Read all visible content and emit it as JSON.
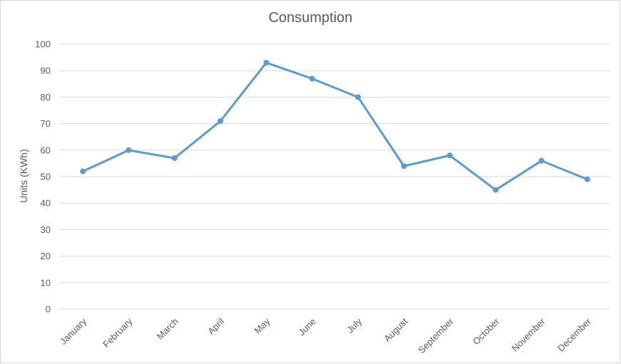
{
  "chart_data": {
    "type": "line",
    "title": "Consumption",
    "xlabel": "",
    "ylabel": "Units (KWh)",
    "categories": [
      "January",
      "February",
      "March",
      "April",
      "May",
      "June",
      "July",
      "August",
      "September",
      "October",
      "November",
      "December"
    ],
    "series": [
      {
        "values": [
          52,
          60,
          57,
          71,
          93,
          87,
          80,
          54,
          58,
          45,
          56,
          49
        ],
        "color": "#5b9bd5"
      }
    ],
    "ylim": [
      0,
      100
    ],
    "yticks": [
      0,
      10,
      20,
      30,
      40,
      50,
      60,
      70,
      80,
      90,
      100
    ],
    "grid": true,
    "legend": "none"
  }
}
